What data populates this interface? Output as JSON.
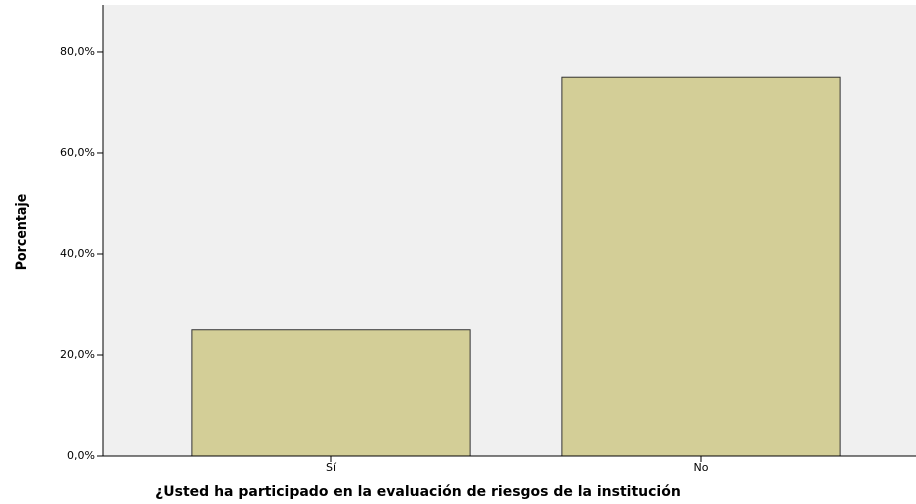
{
  "chart_data": {
    "type": "bar",
    "x_label": "¿Usted ha participado en la evaluación de riesgos de la institución",
    "y_label": "Porcentaje",
    "categories": [
      "Sí",
      "No"
    ],
    "values": [
      25,
      75
    ],
    "color": "#d3ce97",
    "background": "#f0f0f0",
    "ylim": [
      0,
      89.3
    ],
    "yticks": [
      {
        "value": 0,
        "label": "0,0%"
      },
      {
        "value": 20,
        "label": "20,0%"
      },
      {
        "value": 40,
        "label": "40,0%"
      },
      {
        "value": 60,
        "label": "60,0%"
      },
      {
        "value": 80,
        "label": "80,0%"
      }
    ],
    "grid": false
  }
}
